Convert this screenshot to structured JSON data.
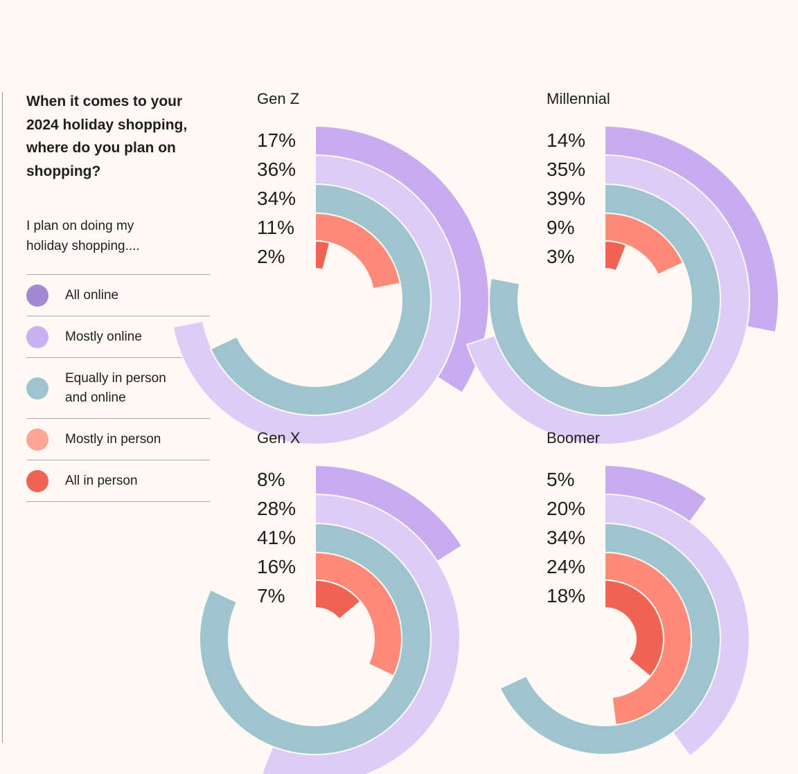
{
  "sidebar": {
    "question": "When it comes to your 2024 holiday shopping, where do you plan on shopping?",
    "subtitle": "I plan on doing my holiday shopping....",
    "legend": [
      {
        "label": "All online",
        "color": "#a38ad0"
      },
      {
        "label": "Mostly online",
        "color": "#c9b0f0"
      },
      {
        "label": "Equally in person and online",
        "color": "#9ec5cf"
      },
      {
        "label": "Mostly in person",
        "color": "#ffa596"
      },
      {
        "label": "All in person",
        "color": "#ef6452"
      }
    ]
  },
  "chart_data": {
    "type": "radial-bar",
    "categories": [
      "All online",
      "Mostly online",
      "Equally in person and online",
      "Mostly in person",
      "All in person"
    ],
    "series_colors": [
      "#c9acf0",
      "#ddcdf6",
      "#9ec5cf",
      "#ff8a7a",
      "#ef6452"
    ],
    "max_value": 50,
    "charts": [
      {
        "title": "Gen Z",
        "values": [
          17,
          36,
          34,
          11,
          2
        ],
        "labels": [
          "17%",
          "36%",
          "34%",
          "11%",
          "2%"
        ]
      },
      {
        "title": "Millennial",
        "values": [
          14,
          35,
          39,
          9,
          3
        ],
        "labels": [
          "14%",
          "35%",
          "39%",
          "9%",
          "3%"
        ]
      },
      {
        "title": "Gen X",
        "values": [
          8,
          28,
          41,
          16,
          7
        ],
        "labels": [
          "8%",
          "28%",
          "41%",
          "16%",
          "7%"
        ]
      },
      {
        "title": "Boomer",
        "values": [
          5,
          20,
          34,
          24,
          18
        ],
        "labels": [
          "5%",
          "20%",
          "34%",
          "24%",
          "18%"
        ]
      }
    ]
  }
}
